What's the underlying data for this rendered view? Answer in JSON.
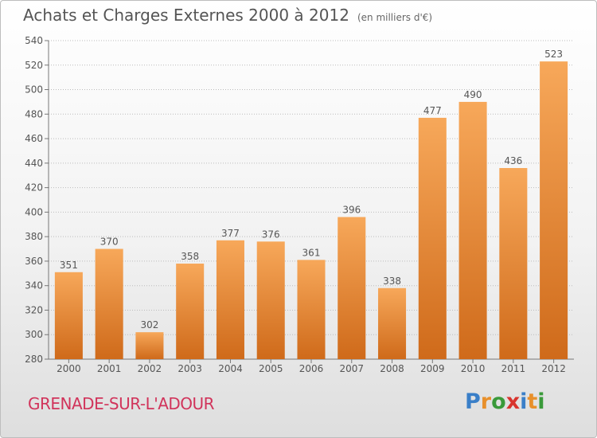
{
  "title": "Achats et Charges Externes 2000 à 2012",
  "unit": "(en milliers d'€)",
  "commune": "GRENADE-SUR-L'ADOUR",
  "brand": {
    "letters": [
      "P",
      "r",
      "o",
      "x",
      "i",
      "t",
      "i"
    ],
    "colors": [
      "#3a7fc8",
      "#e8902b",
      "#3a9a3a",
      "#d8342e",
      "#3a7fc8",
      "#e8902b",
      "#3a9a3a"
    ]
  },
  "colors": {
    "bar_top": "#f7a85a",
    "bar_bottom": "#cf6a1a",
    "grid": "#bbbbbb",
    "text": "#555555",
    "commune": "#d1345b"
  },
  "chart_data": {
    "type": "bar",
    "categories": [
      "2000",
      "2001",
      "2002",
      "2003",
      "2004",
      "2005",
      "2006",
      "2007",
      "2008",
      "2009",
      "2010",
      "2011",
      "2012"
    ],
    "values": [
      351,
      370,
      302,
      358,
      377,
      376,
      361,
      396,
      338,
      477,
      490,
      436,
      523
    ],
    "ylim": [
      280,
      540
    ],
    "yticks": [
      280,
      300,
      320,
      340,
      360,
      380,
      400,
      420,
      440,
      460,
      480,
      500,
      520,
      540
    ],
    "grid": true,
    "data_labels": true
  }
}
